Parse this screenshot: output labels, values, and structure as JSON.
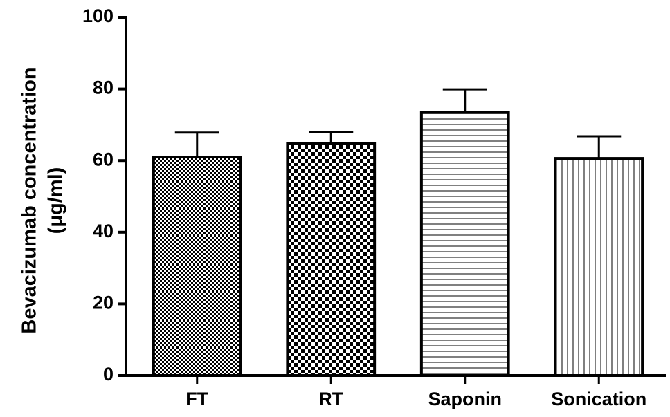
{
  "chart_data": {
    "type": "bar",
    "y_label": [
      "Bevacizumab concentration",
      "(μg/ml)"
    ],
    "categories": [
      "FT",
      "RT",
      "Saponin",
      "Sonication"
    ],
    "values": [
      61.0,
      64.7,
      73.4,
      60.6
    ],
    "errors": [
      6.8,
      3.3,
      6.5,
      6.2
    ],
    "patterns": [
      "checker-fine",
      "checker",
      "horizontal",
      "vertical"
    ],
    "color": "#000000",
    "ylim": [
      0,
      100
    ],
    "yticks": [
      0,
      20,
      40,
      60,
      80,
      100
    ]
  }
}
